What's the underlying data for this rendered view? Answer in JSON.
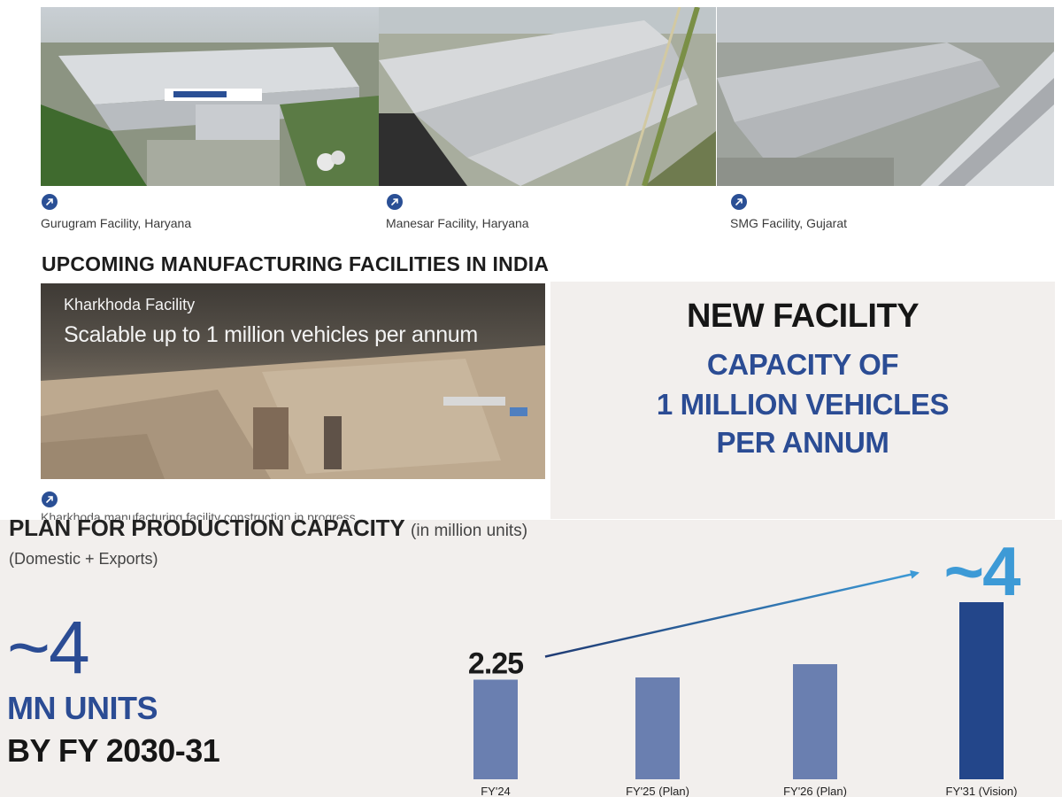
{
  "facilities": [
    {
      "caption": "Gurugram Facility, Haryana",
      "icon": "arrow-up-right-icon"
    },
    {
      "caption": "Manesar Facility, Haryana",
      "icon": "arrow-up-right-icon"
    },
    {
      "caption": "SMG Facility, Gujarat",
      "icon": "arrow-up-right-icon"
    }
  ],
  "upcoming": {
    "heading": "UPCOMING MANUFACTURING FACILITIES IN INDIA",
    "photo_title": "Kharkhoda Facility",
    "photo_subtitle": "Scalable up to 1 million vehicles per annum",
    "caption": "Kharkhoda manufacturing facility construction in progress",
    "icon": "arrow-up-right-icon"
  },
  "new_facility": {
    "title": "NEW FACILITY",
    "line1": "CAPACITY OF",
    "line2": "1 MILLION VEHICLES",
    "line3": "PER ANNUM"
  },
  "plan": {
    "title": "PLAN FOR PRODUCTION CAPACITY",
    "unit": "(in million units)",
    "subtitle": "(Domestic + Exports)",
    "big_value": "~4",
    "big_line1": "MN UNITS",
    "big_line2": "BY FY 2030-31"
  },
  "colors": {
    "accent": "#2b4c94",
    "bar_light": "#6a7fb0",
    "bar_dark": "#23468a",
    "arrow_start": "#1f3a73",
    "arrow_end": "#3d9ad6",
    "panel_bg": "#f2efed"
  },
  "chart_data": {
    "type": "bar",
    "categories": [
      "FY'24",
      "FY'25 (Plan)",
      "FY'26 (Plan)",
      "FY'31 (Vision)"
    ],
    "values": [
      2.25,
      2.3,
      2.6,
      4
    ],
    "data_labels": [
      "2.25",
      "",
      "",
      "~4"
    ],
    "ylim": [
      0,
      4.3
    ],
    "title": "",
    "xlabel": "",
    "ylabel": "",
    "grid": false,
    "annotation": "arrow from FY'24 value toward FY'31 value"
  }
}
